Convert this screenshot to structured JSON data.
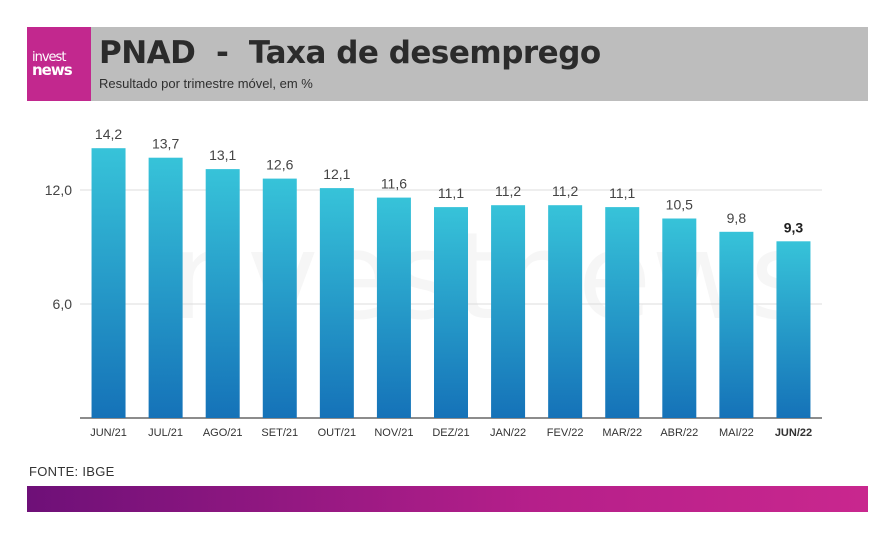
{
  "header": {
    "logo_line1": "invest",
    "logo_line2": "news",
    "title": "PNAD  -  Taxa de desemprego",
    "subtitle": "Resultado por trimestre móvel, em %"
  },
  "watermark": "investnews",
  "source": "FONTE: IBGE",
  "colors": {
    "brand": "#c2288e",
    "header_bg": "#bdbdbd",
    "bar_top": "#37c3d9",
    "bar_bottom": "#1572b8"
  },
  "chart_data": {
    "type": "bar",
    "title": "PNAD - Taxa de desemprego",
    "subtitle": "Resultado por trimestre móvel, em %",
    "xlabel": "",
    "ylabel": "",
    "categories": [
      "JUN/21",
      "JUL/21",
      "AGO/21",
      "SET/21",
      "OUT/21",
      "NOV/21",
      "DEZ/21",
      "JAN/22",
      "FEV/22",
      "MAR/22",
      "ABR/22",
      "MAI/22",
      "JUN/22"
    ],
    "values": [
      14.2,
      13.7,
      13.1,
      12.6,
      12.1,
      11.6,
      11.1,
      11.2,
      11.2,
      11.1,
      10.5,
      9.8,
      9.3
    ],
    "value_labels": [
      "14,2",
      "13,7",
      "13,1",
      "12,6",
      "12,1",
      "11,6",
      "11,1",
      "11,2",
      "11,2",
      "11,1",
      "10,5",
      "9,8",
      "9,3"
    ],
    "yticks": [
      6.0,
      12.0
    ],
    "ytick_labels": [
      "6,0",
      "12,0"
    ],
    "ylim": [
      0,
      14.2
    ],
    "grid": true,
    "highlight_index": 12
  }
}
